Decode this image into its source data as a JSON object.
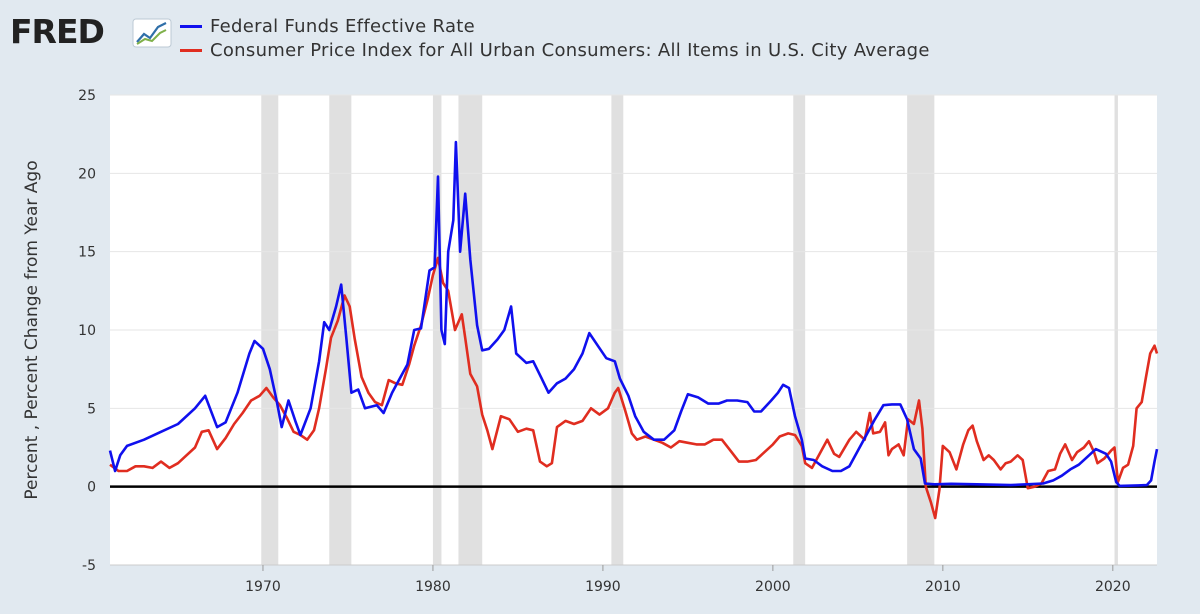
{
  "logo": {
    "text": "FRED",
    "mark": "®",
    "icon": "trend-graph-icon"
  },
  "colors": {
    "series1": "#1010ee",
    "series2": "#e02d20",
    "zero_line": "#000000",
    "recession": "#e0e0e0",
    "plot_bg": "#ffffff",
    "page_bg": "#e1e9f0"
  },
  "chart_data": {
    "type": "line",
    "title": "",
    "xlabel": "",
    "ylabel": "Percent , Percent Change from Year Ago",
    "xlim": [
      1961,
      2022.6
    ],
    "ylim": [
      -5,
      25
    ],
    "xticks": [
      1970,
      1980,
      1990,
      2000,
      2010,
      2020
    ],
    "yticks": [
      -5,
      0,
      5,
      10,
      15,
      20,
      25
    ],
    "grid": "horizontal",
    "legend_position": "top-left",
    "recessions": [
      [
        1969.9,
        1970.9
      ],
      [
        1973.9,
        1975.2
      ],
      [
        1980.0,
        1980.5
      ],
      [
        1981.5,
        1982.9
      ],
      [
        1990.5,
        1991.2
      ],
      [
        2001.2,
        2001.9
      ],
      [
        2007.9,
        2009.5
      ],
      [
        2020.1,
        2020.3
      ]
    ],
    "series": [
      {
        "name": "Federal Funds Effective Rate",
        "color": "#1010ee",
        "points": [
          [
            1961.0,
            2.3
          ],
          [
            1961.3,
            1.0
          ],
          [
            1961.6,
            2.0
          ],
          [
            1962.0,
            2.6
          ],
          [
            1963.0,
            3.0
          ],
          [
            1964.0,
            3.5
          ],
          [
            1965.0,
            4.0
          ],
          [
            1966.0,
            5.0
          ],
          [
            1966.6,
            5.8
          ],
          [
            1967.3,
            3.8
          ],
          [
            1967.8,
            4.1
          ],
          [
            1968.5,
            6.0
          ],
          [
            1969.2,
            8.5
          ],
          [
            1969.5,
            9.3
          ],
          [
            1970.0,
            8.8
          ],
          [
            1970.4,
            7.5
          ],
          [
            1970.8,
            5.5
          ],
          [
            1971.1,
            3.8
          ],
          [
            1971.5,
            5.5
          ],
          [
            1971.9,
            4.2
          ],
          [
            1972.2,
            3.3
          ],
          [
            1972.8,
            5.0
          ],
          [
            1973.3,
            8.0
          ],
          [
            1973.6,
            10.5
          ],
          [
            1973.9,
            10.0
          ],
          [
            1974.3,
            11.5
          ],
          [
            1974.6,
            12.9
          ],
          [
            1974.9,
            9.5
          ],
          [
            1975.2,
            6.0
          ],
          [
            1975.6,
            6.2
          ],
          [
            1976.0,
            5.0
          ],
          [
            1976.7,
            5.2
          ],
          [
            1977.1,
            4.7
          ],
          [
            1977.6,
            6.0
          ],
          [
            1978.0,
            6.8
          ],
          [
            1978.5,
            7.8
          ],
          [
            1978.9,
            10.0
          ],
          [
            1979.3,
            10.1
          ],
          [
            1979.8,
            13.8
          ],
          [
            1980.1,
            14.0
          ],
          [
            1980.3,
            19.8
          ],
          [
            1980.5,
            10.0
          ],
          [
            1980.7,
            9.1
          ],
          [
            1980.9,
            15.0
          ],
          [
            1981.2,
            17.0
          ],
          [
            1981.35,
            22.0
          ],
          [
            1981.6,
            15.0
          ],
          [
            1981.9,
            18.7
          ],
          [
            1982.2,
            14.5
          ],
          [
            1982.6,
            10.3
          ],
          [
            1982.9,
            8.7
          ],
          [
            1983.3,
            8.8
          ],
          [
            1983.8,
            9.4
          ],
          [
            1984.2,
            10.0
          ],
          [
            1984.6,
            11.5
          ],
          [
            1984.9,
            8.5
          ],
          [
            1985.5,
            7.9
          ],
          [
            1985.9,
            8.0
          ],
          [
            1986.4,
            6.9
          ],
          [
            1986.8,
            6.0
          ],
          [
            1987.3,
            6.6
          ],
          [
            1987.8,
            6.9
          ],
          [
            1988.3,
            7.5
          ],
          [
            1988.8,
            8.5
          ],
          [
            1989.2,
            9.8
          ],
          [
            1989.7,
            9.0
          ],
          [
            1990.2,
            8.2
          ],
          [
            1990.7,
            8.0
          ],
          [
            1991.0,
            6.9
          ],
          [
            1991.5,
            5.8
          ],
          [
            1991.9,
            4.5
          ],
          [
            1992.4,
            3.5
          ],
          [
            1993.0,
            3.0
          ],
          [
            1993.6,
            3.0
          ],
          [
            1994.2,
            3.6
          ],
          [
            1994.6,
            4.8
          ],
          [
            1995.0,
            5.9
          ],
          [
            1995.6,
            5.7
          ],
          [
            1996.2,
            5.3
          ],
          [
            1996.8,
            5.3
          ],
          [
            1997.3,
            5.5
          ],
          [
            1997.9,
            5.5
          ],
          [
            1998.5,
            5.4
          ],
          [
            1998.9,
            4.8
          ],
          [
            1999.3,
            4.8
          ],
          [
            1999.9,
            5.5
          ],
          [
            2000.3,
            6.0
          ],
          [
            2000.6,
            6.5
          ],
          [
            2000.95,
            6.3
          ],
          [
            2001.3,
            4.5
          ],
          [
            2001.7,
            3.0
          ],
          [
            2001.9,
            1.8
          ],
          [
            2002.4,
            1.7
          ],
          [
            2002.9,
            1.3
          ],
          [
            2003.5,
            1.0
          ],
          [
            2004.0,
            1.0
          ],
          [
            2004.5,
            1.3
          ],
          [
            2005.0,
            2.3
          ],
          [
            2005.5,
            3.3
          ],
          [
            2006.0,
            4.3
          ],
          [
            2006.5,
            5.2
          ],
          [
            2007.0,
            5.25
          ],
          [
            2007.5,
            5.25
          ],
          [
            2007.9,
            4.3
          ],
          [
            2008.3,
            2.4
          ],
          [
            2008.7,
            1.8
          ],
          [
            2008.95,
            0.2
          ],
          [
            2009.5,
            0.15
          ],
          [
            2010.5,
            0.18
          ],
          [
            2012.0,
            0.15
          ],
          [
            2014.0,
            0.1
          ],
          [
            2015.9,
            0.2
          ],
          [
            2016.5,
            0.4
          ],
          [
            2017.0,
            0.7
          ],
          [
            2017.5,
            1.1
          ],
          [
            2018.0,
            1.4
          ],
          [
            2018.5,
            1.9
          ],
          [
            2019.0,
            2.4
          ],
          [
            2019.6,
            2.1
          ],
          [
            2019.9,
            1.6
          ],
          [
            2020.2,
            0.3
          ],
          [
            2020.4,
            0.05
          ],
          [
            2021.5,
            0.08
          ],
          [
            2022.0,
            0.1
          ],
          [
            2022.25,
            0.4
          ],
          [
            2022.45,
            1.6
          ],
          [
            2022.6,
            2.4
          ]
        ]
      },
      {
        "name": "Consumer Price Index for All Urban Consumers: All Items in U.S. City Average",
        "color": "#e02d20",
        "points": [
          [
            1961.0,
            1.4
          ],
          [
            1961.5,
            1.0
          ],
          [
            1962.0,
            1.0
          ],
          [
            1962.5,
            1.3
          ],
          [
            1963.0,
            1.3
          ],
          [
            1963.5,
            1.2
          ],
          [
            1964.0,
            1.6
          ],
          [
            1964.5,
            1.2
          ],
          [
            1965.0,
            1.5
          ],
          [
            1965.5,
            2.0
          ],
          [
            1966.0,
            2.5
          ],
          [
            1966.4,
            3.5
          ],
          [
            1966.8,
            3.6
          ],
          [
            1967.3,
            2.4
          ],
          [
            1967.8,
            3.1
          ],
          [
            1968.3,
            4.0
          ],
          [
            1968.8,
            4.7
          ],
          [
            1969.3,
            5.5
          ],
          [
            1969.8,
            5.8
          ],
          [
            1970.2,
            6.3
          ],
          [
            1970.6,
            5.7
          ],
          [
            1971.0,
            5.2
          ],
          [
            1971.4,
            4.4
          ],
          [
            1971.8,
            3.5
          ],
          [
            1972.2,
            3.3
          ],
          [
            1972.6,
            3.0
          ],
          [
            1973.0,
            3.6
          ],
          [
            1973.3,
            5.0
          ],
          [
            1973.7,
            7.5
          ],
          [
            1974.0,
            9.5
          ],
          [
            1974.4,
            10.6
          ],
          [
            1974.8,
            12.2
          ],
          [
            1975.1,
            11.5
          ],
          [
            1975.4,
            9.4
          ],
          [
            1975.8,
            7.0
          ],
          [
            1976.2,
            6.0
          ],
          [
            1976.6,
            5.4
          ],
          [
            1977.0,
            5.2
          ],
          [
            1977.4,
            6.8
          ],
          [
            1977.8,
            6.6
          ],
          [
            1978.2,
            6.5
          ],
          [
            1978.6,
            7.8
          ],
          [
            1978.9,
            9.0
          ],
          [
            1979.3,
            10.3
          ],
          [
            1979.7,
            12.0
          ],
          [
            1980.0,
            13.5
          ],
          [
            1980.3,
            14.6
          ],
          [
            1980.6,
            13.0
          ],
          [
            1980.9,
            12.5
          ],
          [
            1981.3,
            10.0
          ],
          [
            1981.7,
            11.0
          ],
          [
            1981.9,
            9.5
          ],
          [
            1982.2,
            7.2
          ],
          [
            1982.6,
            6.4
          ],
          [
            1982.9,
            4.6
          ],
          [
            1983.2,
            3.6
          ],
          [
            1983.5,
            2.4
          ],
          [
            1984.0,
            4.5
          ],
          [
            1984.5,
            4.3
          ],
          [
            1985.0,
            3.5
          ],
          [
            1985.5,
            3.7
          ],
          [
            1985.9,
            3.6
          ],
          [
            1986.3,
            1.6
          ],
          [
            1986.7,
            1.3
          ],
          [
            1987.0,
            1.5
          ],
          [
            1987.3,
            3.8
          ],
          [
            1987.8,
            4.2
          ],
          [
            1988.3,
            4.0
          ],
          [
            1988.8,
            4.2
          ],
          [
            1989.3,
            5.0
          ],
          [
            1989.8,
            4.6
          ],
          [
            1990.3,
            5.0
          ],
          [
            1990.7,
            6.0
          ],
          [
            1990.9,
            6.3
          ],
          [
            1991.3,
            4.9
          ],
          [
            1991.7,
            3.4
          ],
          [
            1992.0,
            3.0
          ],
          [
            1992.5,
            3.2
          ],
          [
            1993.0,
            3.0
          ],
          [
            1993.5,
            2.8
          ],
          [
            1994.0,
            2.5
          ],
          [
            1994.5,
            2.9
          ],
          [
            1995.0,
            2.8
          ],
          [
            1995.5,
            2.7
          ],
          [
            1996.0,
            2.7
          ],
          [
            1996.5,
            3.0
          ],
          [
            1997.0,
            3.0
          ],
          [
            1997.5,
            2.3
          ],
          [
            1998.0,
            1.6
          ],
          [
            1998.5,
            1.6
          ],
          [
            1999.0,
            1.7
          ],
          [
            1999.5,
            2.2
          ],
          [
            2000.0,
            2.7
          ],
          [
            2000.4,
            3.2
          ],
          [
            2000.9,
            3.4
          ],
          [
            2001.3,
            3.3
          ],
          [
            2001.7,
            2.6
          ],
          [
            2001.9,
            1.5
          ],
          [
            2002.3,
            1.2
          ],
          [
            2002.8,
            2.2
          ],
          [
            2003.2,
            3.0
          ],
          [
            2003.6,
            2.1
          ],
          [
            2003.9,
            1.9
          ],
          [
            2004.5,
            3.0
          ],
          [
            2004.9,
            3.5
          ],
          [
            2005.4,
            3.0
          ],
          [
            2005.7,
            4.7
          ],
          [
            2005.9,
            3.4
          ],
          [
            2006.3,
            3.5
          ],
          [
            2006.6,
            4.1
          ],
          [
            2006.8,
            2.0
          ],
          [
            2007.0,
            2.4
          ],
          [
            2007.4,
            2.7
          ],
          [
            2007.7,
            2.0
          ],
          [
            2007.95,
            4.3
          ],
          [
            2008.3,
            4.0
          ],
          [
            2008.6,
            5.5
          ],
          [
            2008.8,
            3.7
          ],
          [
            2009.0,
            0.0
          ],
          [
            2009.3,
            -1.0
          ],
          [
            2009.55,
            -2.0
          ],
          [
            2009.8,
            -0.2
          ],
          [
            2010.0,
            2.6
          ],
          [
            2010.4,
            2.2
          ],
          [
            2010.8,
            1.1
          ],
          [
            2011.2,
            2.7
          ],
          [
            2011.5,
            3.6
          ],
          [
            2011.75,
            3.9
          ],
          [
            2012.0,
            2.9
          ],
          [
            2012.4,
            1.7
          ],
          [
            2012.7,
            2.0
          ],
          [
            2013.0,
            1.7
          ],
          [
            2013.4,
            1.1
          ],
          [
            2013.7,
            1.5
          ],
          [
            2014.0,
            1.6
          ],
          [
            2014.4,
            2.0
          ],
          [
            2014.7,
            1.7
          ],
          [
            2015.0,
            -0.1
          ],
          [
            2015.4,
            0.0
          ],
          [
            2015.8,
            0.2
          ],
          [
            2016.2,
            1.0
          ],
          [
            2016.6,
            1.1
          ],
          [
            2016.9,
            2.1
          ],
          [
            2017.2,
            2.7
          ],
          [
            2017.6,
            1.7
          ],
          [
            2017.9,
            2.2
          ],
          [
            2018.3,
            2.5
          ],
          [
            2018.6,
            2.9
          ],
          [
            2018.9,
            2.2
          ],
          [
            2019.1,
            1.5
          ],
          [
            2019.5,
            1.8
          ],
          [
            2019.9,
            2.3
          ],
          [
            2020.1,
            2.5
          ],
          [
            2020.3,
            0.3
          ],
          [
            2020.6,
            1.2
          ],
          [
            2020.9,
            1.4
          ],
          [
            2021.2,
            2.6
          ],
          [
            2021.4,
            5.0
          ],
          [
            2021.7,
            5.4
          ],
          [
            2021.95,
            7.0
          ],
          [
            2022.2,
            8.5
          ],
          [
            2022.45,
            9.0
          ],
          [
            2022.6,
            8.5
          ]
        ]
      }
    ]
  }
}
